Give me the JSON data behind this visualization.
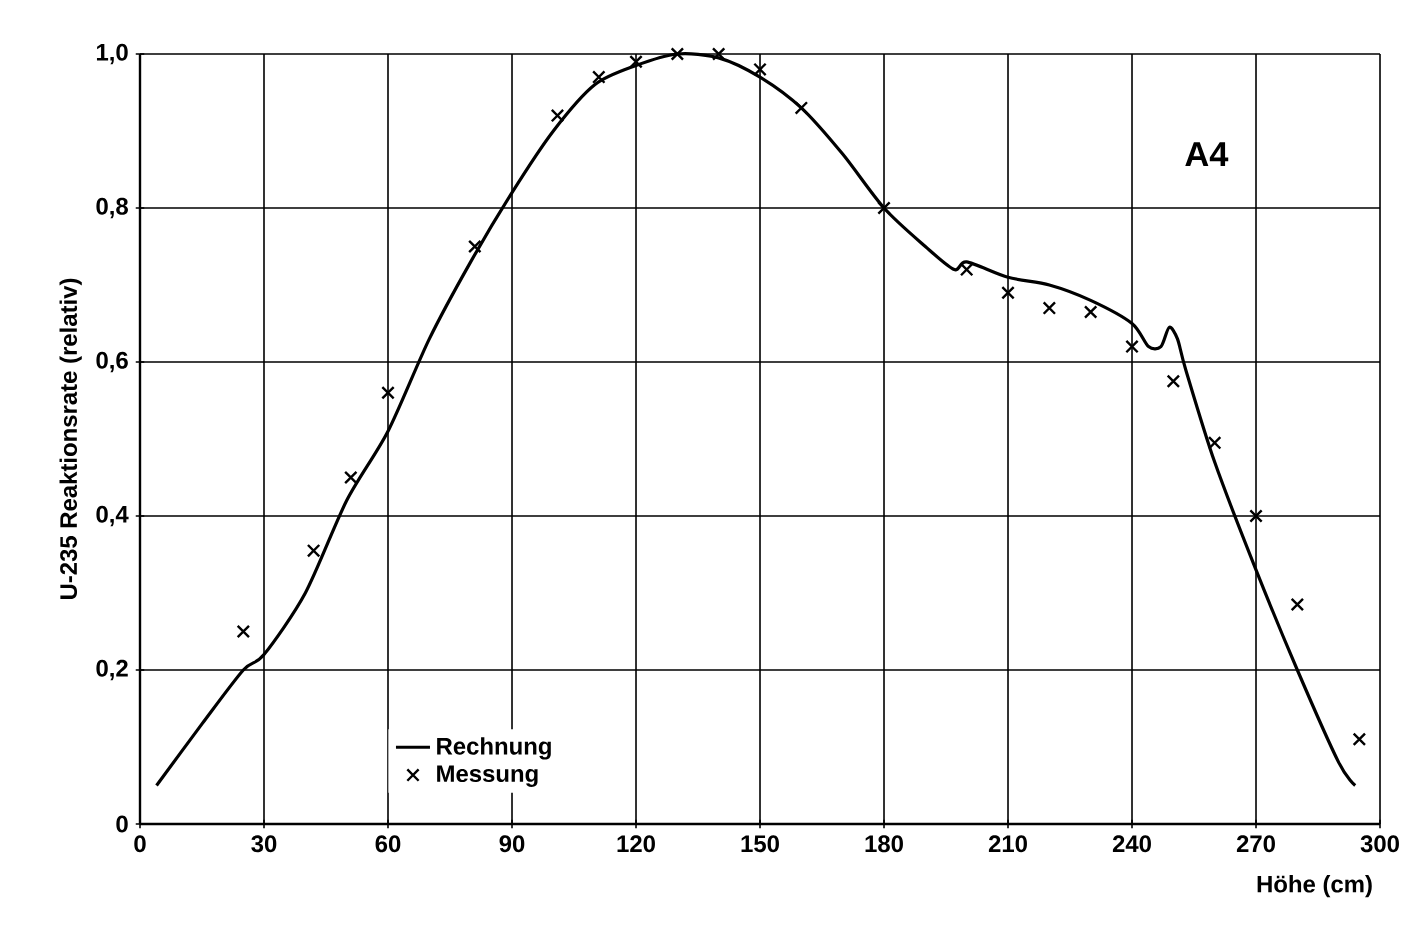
{
  "chart_data": {
    "type": "line",
    "xlabel": "Höhe (cm)",
    "ylabel": "U-235 Reaktionsrate (relativ)",
    "annotations": [
      "A4"
    ],
    "xlim": [
      0,
      300
    ],
    "ylim": [
      0,
      1.0
    ],
    "xticks": [
      0,
      30,
      60,
      90,
      120,
      150,
      180,
      210,
      240,
      270,
      300
    ],
    "yticks": [
      0,
      {
        "value": 0.2,
        "label": "0,2"
      },
      {
        "value": 0.4,
        "label": "0,4"
      },
      {
        "value": 0.6,
        "label": "0,6"
      },
      {
        "value": 0.8,
        "label": "0,8"
      },
      {
        "value": 1.0,
        "label": "1,0"
      }
    ],
    "grid": true,
    "legend": "bottom left",
    "series": [
      {
        "name": "Rechnung",
        "color": "#000000",
        "marker": "none",
        "line_style": "solid",
        "x": [
          4,
          15,
          25,
          30,
          40,
          50,
          60,
          70,
          80,
          90,
          100,
          110,
          120,
          130,
          140,
          150,
          160,
          170,
          180,
          190,
          197,
          200,
          210,
          220,
          230,
          240,
          244,
          247,
          249,
          251,
          253,
          260,
          270,
          280,
          290,
          294
        ],
        "values": [
          0.05,
          0.13,
          0.2,
          0.22,
          0.3,
          0.42,
          0.51,
          0.63,
          0.73,
          0.82,
          0.9,
          0.96,
          0.985,
          1.0,
          0.995,
          0.97,
          0.93,
          0.87,
          0.8,
          0.75,
          0.72,
          0.73,
          0.71,
          0.7,
          0.68,
          0.65,
          0.62,
          0.62,
          0.645,
          0.63,
          0.59,
          0.47,
          0.33,
          0.2,
          0.08,
          0.05
        ]
      },
      {
        "name": "Messung",
        "type": "scatter",
        "color": "#000000",
        "marker": "cross",
        "x": [
          25,
          42,
          51,
          60,
          81,
          101,
          111,
          120,
          130,
          140,
          150,
          160,
          180,
          200,
          210,
          220,
          230,
          240,
          250,
          260,
          270,
          280,
          295
        ],
        "values": [
          0.25,
          0.355,
          0.45,
          0.56,
          0.75,
          0.92,
          0.97,
          0.99,
          1.0,
          1.0,
          0.98,
          0.93,
          0.8,
          0.72,
          0.69,
          0.67,
          0.665,
          0.62,
          0.575,
          0.495,
          0.4,
          0.285,
          0.11
        ]
      }
    ]
  }
}
